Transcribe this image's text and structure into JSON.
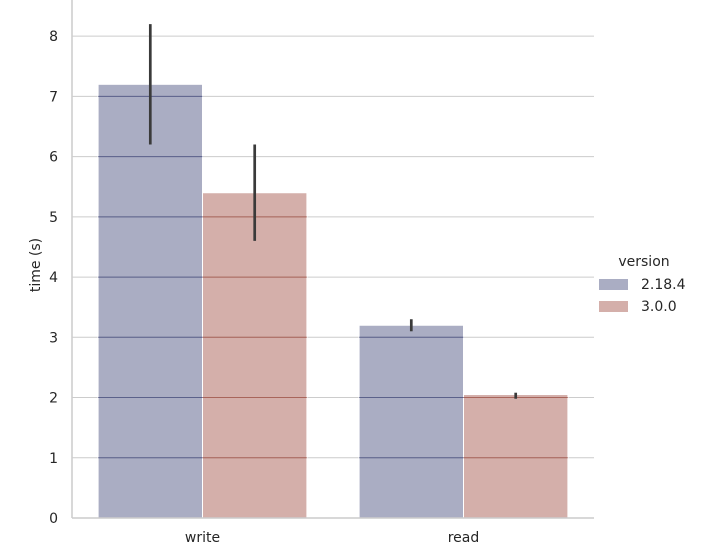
{
  "chart_data": {
    "type": "bar",
    "categories": [
      "write",
      "read"
    ],
    "series": [
      {
        "name": "2.18.4",
        "values": [
          7.2,
          3.2
        ],
        "err_low": [
          6.2,
          3.1
        ],
        "err_high": [
          8.2,
          3.3
        ],
        "color": "#4a5080"
      },
      {
        "name": "3.0.0",
        "values": [
          5.4,
          2.05
        ],
        "err_low": [
          4.6,
          1.98
        ],
        "err_high": [
          6.2,
          2.08
        ],
        "color": "#a3564a"
      }
    ],
    "xlabel": "",
    "ylabel": "time (s)",
    "ylim": [
      0,
      8.6
    ],
    "yticks": [
      0,
      1,
      2,
      3,
      4,
      5,
      6,
      7,
      8
    ],
    "grid": true,
    "legend": {
      "title": "version",
      "placement": "right"
    }
  }
}
